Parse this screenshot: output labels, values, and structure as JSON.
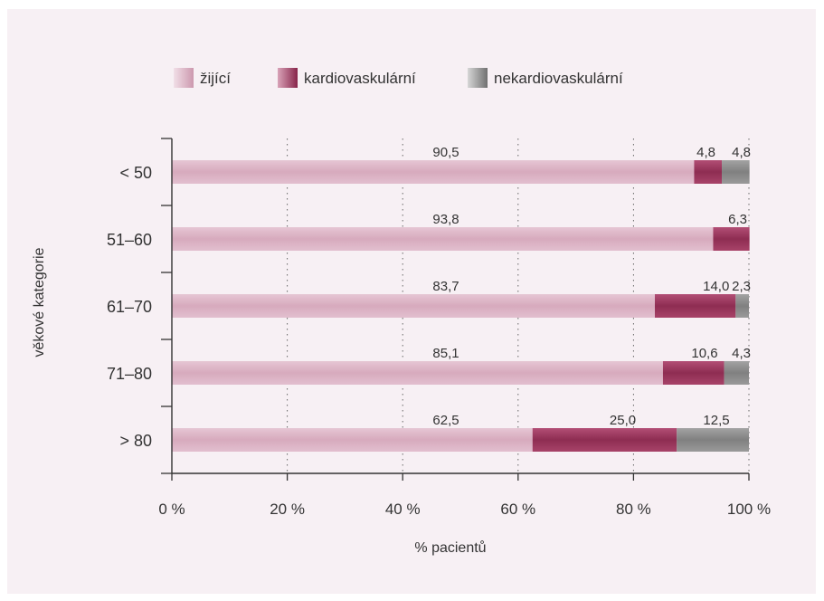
{
  "chart_data": {
    "type": "bar",
    "orientation": "horizontal",
    "stacked": true,
    "categories": [
      "< 50",
      "51–60",
      "61–70",
      "71–80",
      "> 80"
    ],
    "series": [
      {
        "name": "žijící",
        "values": [
          90.5,
          93.8,
          83.7,
          85.1,
          62.5
        ],
        "color": "#dcb3c6"
      },
      {
        "name": "kardiovaskulární",
        "values": [
          4.8,
          6.3,
          14.0,
          10.6,
          25.0
        ],
        "color": "#9e3d62"
      },
      {
        "name": "nekardiovaskulární",
        "values": [
          4.8,
          0,
          2.3,
          4.3,
          12.5
        ],
        "color": "#8f8f8f"
      }
    ],
    "data_labels": [
      [
        "90,5",
        "4,8",
        "4,8"
      ],
      [
        "93,8",
        "6,3",
        ""
      ],
      [
        "83,7",
        "14,0",
        "2,3"
      ],
      [
        "85,1",
        "10,6",
        "4,3"
      ],
      [
        "62,5",
        "25,0",
        "12,5"
      ]
    ],
    "xticks": [
      "0 %",
      "20 %",
      "40 %",
      "60 %",
      "80 %",
      "100 %"
    ],
    "xlabel": "% pacientů",
    "ylabel": "věkové kategorie",
    "xlim": [
      0,
      100
    ],
    "grid": "vertical dotted",
    "legend_position": "top"
  }
}
